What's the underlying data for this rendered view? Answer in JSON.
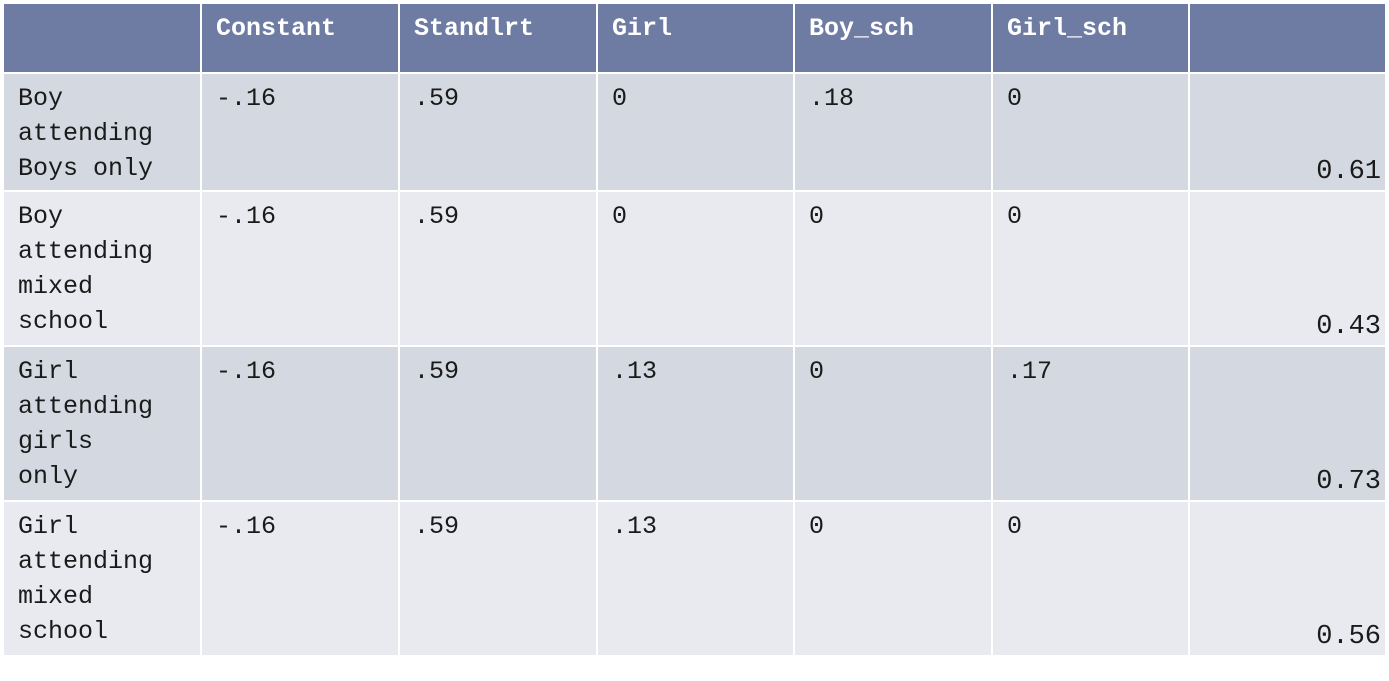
{
  "table": {
    "headers": [
      "",
      "Constant",
      "Standlrt",
      "Girl",
      "Boy_sch",
      "Girl_sch",
      ""
    ],
    "rows": [
      {
        "label": "Boy attending Boys only",
        "label_lines": [
          "Boy",
          "attending",
          "Boys only"
        ],
        "constant": "-.16",
        "standlrt": ".59",
        "girl": "0",
        "boy_sch": ".18",
        "girl_sch": "0",
        "result": "0.61"
      },
      {
        "label": "Boy attending mixed school",
        "label_lines": [
          "Boy",
          "attending",
          "mixed",
          "school"
        ],
        "constant": "-.16",
        "standlrt": ".59",
        "girl": "0",
        "boy_sch": "0",
        "girl_sch": "0",
        "result": "0.43"
      },
      {
        "label": "Girl attending girls only",
        "label_lines": [
          "Girl",
          "attending",
          "girls",
          "only"
        ],
        "constant": "-.16",
        "standlrt": ".59",
        "girl": ".13",
        "boy_sch": "0",
        "girl_sch": ".17",
        "result": "0.73"
      },
      {
        "label": "Girl attending mixed school",
        "label_lines": [
          "Girl",
          "attending",
          "mixed",
          "school"
        ],
        "constant": "-.16",
        "standlrt": ".59",
        "girl": ".13",
        "boy_sch": "0",
        "girl_sch": "0",
        "result": "0.56"
      }
    ]
  },
  "colors": {
    "header_bg": "#6e7ba3",
    "row_dark": "#d4d8e1",
    "row_light": "#e8eaef"
  }
}
